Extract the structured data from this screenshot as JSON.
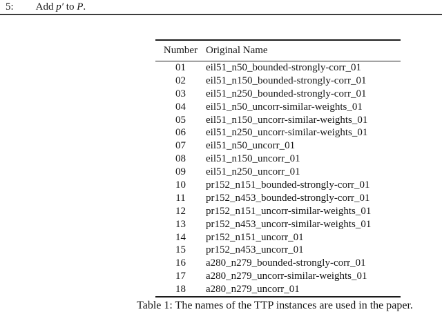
{
  "algorithm": {
    "line_number": "5:",
    "text_add": "Add",
    "var_p_prime": "p′",
    "text_to": "to",
    "var_P": "P",
    "period": "."
  },
  "table": {
    "headers": {
      "number": "Number",
      "name": "Original Name"
    },
    "rows": [
      {
        "number": "01",
        "name": "eil51_n50_bounded-strongly-corr_01"
      },
      {
        "number": "02",
        "name": "eil51_n150_bounded-strongly-corr_01"
      },
      {
        "number": "03",
        "name": "eil51_n250_bounded-strongly-corr_01"
      },
      {
        "number": "04",
        "name": "eil51_n50_uncorr-similar-weights_01"
      },
      {
        "number": "05",
        "name": "eil51_n150_uncorr-similar-weights_01"
      },
      {
        "number": "06",
        "name": "eil51_n250_uncorr-similar-weights_01"
      },
      {
        "number": "07",
        "name": "eil51_n50_uncorr_01"
      },
      {
        "number": "08",
        "name": "eil51_n150_uncorr_01"
      },
      {
        "number": "09",
        "name": "eil51_n250_uncorr_01"
      },
      {
        "number": "10",
        "name": "pr152_n151_bounded-strongly-corr_01"
      },
      {
        "number": "11",
        "name": "pr152_n453_bounded-strongly-corr_01"
      },
      {
        "number": "12",
        "name": "pr152_n151_uncorr-similar-weights_01"
      },
      {
        "number": "13",
        "name": "pr152_n453_uncorr-similar-weights_01"
      },
      {
        "number": "14",
        "name": "pr152_n151_uncorr_01"
      },
      {
        "number": "15",
        "name": "pr152_n453_uncorr_01"
      },
      {
        "number": "16",
        "name": "a280_n279_bounded-strongly-corr_01"
      },
      {
        "number": "17",
        "name": "a280_n279_uncorr-similar-weights_01"
      },
      {
        "number": "18",
        "name": "a280_n279_uncorr_01"
      }
    ],
    "caption": "Table 1: The names of the TTP instances are used in the paper."
  }
}
